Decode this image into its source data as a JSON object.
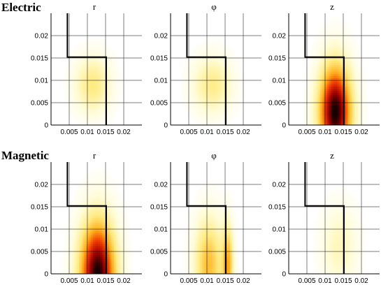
{
  "rows": [
    {
      "label": "Electric"
    },
    {
      "label": "Magnetic"
    }
  ],
  "chart_data": [
    {
      "type": "heatmap",
      "row": "Electric",
      "title": "r",
      "x_ticks": [
        "0.005",
        "0.01",
        "0.015",
        "0.02"
      ],
      "y_ticks": [
        "0",
        "0.005",
        "0.01",
        "0.015",
        "0.02"
      ],
      "xlim": [
        0,
        0.025
      ],
      "ylim": [
        0,
        0.025
      ],
      "grid": true,
      "colormap": "hot",
      "peaks": [
        {
          "x": 0.0115,
          "y": 0.009,
          "sx": 0.0035,
          "sy": 0.0045,
          "amp": 0.3
        }
      ]
    },
    {
      "type": "heatmap",
      "row": "Electric",
      "title": "φ",
      "x_ticks": [
        "0.005",
        "0.01",
        "0.015",
        "0.02"
      ],
      "y_ticks": [
        "0",
        "0.005",
        "0.01",
        "0.015",
        "0.02"
      ],
      "xlim": [
        0,
        0.025
      ],
      "ylim": [
        0,
        0.025
      ],
      "grid": true,
      "colormap": "hot",
      "peaks": [
        {
          "x": 0.0115,
          "y": 0.009,
          "sx": 0.0038,
          "sy": 0.0045,
          "amp": 0.28
        }
      ]
    },
    {
      "type": "heatmap",
      "row": "Electric",
      "title": "z",
      "x_ticks": [
        "0.005",
        "0.01",
        "0.015",
        "0.02"
      ],
      "y_ticks": [
        "0",
        "0.005",
        "0.01",
        "0.015",
        "0.02"
      ],
      "xlim": [
        0,
        0.025
      ],
      "ylim": [
        0,
        0.025
      ],
      "grid": true,
      "colormap": "hot",
      "peaks": [
        {
          "x": 0.0128,
          "y": 0.003,
          "sx": 0.0032,
          "sy": 0.0075,
          "amp": 1.0
        }
      ]
    },
    {
      "type": "heatmap",
      "row": "Magnetic",
      "title": "r",
      "x_ticks": [
        "0.005",
        "0.01",
        "0.015",
        "0.02"
      ],
      "y_ticks": [
        "0",
        "0.005",
        "0.01",
        "0.015",
        "0.02"
      ],
      "xlim": [
        0,
        0.025
      ],
      "ylim": [
        0,
        0.025
      ],
      "grid": true,
      "colormap": "hot",
      "peaks": [
        {
          "x": 0.0128,
          "y": 0.0,
          "sx": 0.0035,
          "sy": 0.0085,
          "amp": 1.0
        }
      ]
    },
    {
      "type": "heatmap",
      "row": "Magnetic",
      "title": "φ",
      "x_ticks": [
        "0.005",
        "0.01",
        "0.015",
        "0.02"
      ],
      "y_ticks": [
        "0",
        "0.005",
        "0.01",
        "0.015",
        "0.02"
      ],
      "xlim": [
        0,
        0.025
      ],
      "ylim": [
        0,
        0.025
      ],
      "grid": true,
      "colormap": "hot",
      "peaks": [
        {
          "x": 0.0105,
          "y": 0.002,
          "sx": 0.0028,
          "sy": 0.0075,
          "amp": 0.45
        },
        {
          "x": 0.0158,
          "y": 0.002,
          "sx": 0.0011,
          "sy": 0.0065,
          "amp": 0.45
        }
      ]
    },
    {
      "type": "heatmap",
      "row": "Magnetic",
      "title": "z",
      "x_ticks": [
        "0.005",
        "0.01",
        "0.015",
        "0.02"
      ],
      "y_ticks": [
        "0",
        "0.005",
        "0.01",
        "0.015",
        "0.02"
      ],
      "xlim": [
        0,
        0.025
      ],
      "ylim": [
        0,
        0.025
      ],
      "grid": true,
      "colormap": "hot",
      "peaks": [
        {
          "x": 0.014,
          "y": 0.006,
          "sx": 0.0035,
          "sy": 0.0065,
          "amp": 0.18
        }
      ]
    }
  ],
  "boundary": {
    "description_units": "data",
    "points": [
      [
        0.0045,
        0.025
      ],
      [
        0.0045,
        0.0152
      ],
      [
        0.0152,
        0.0152
      ],
      [
        0.0152,
        0.0
      ]
    ]
  }
}
